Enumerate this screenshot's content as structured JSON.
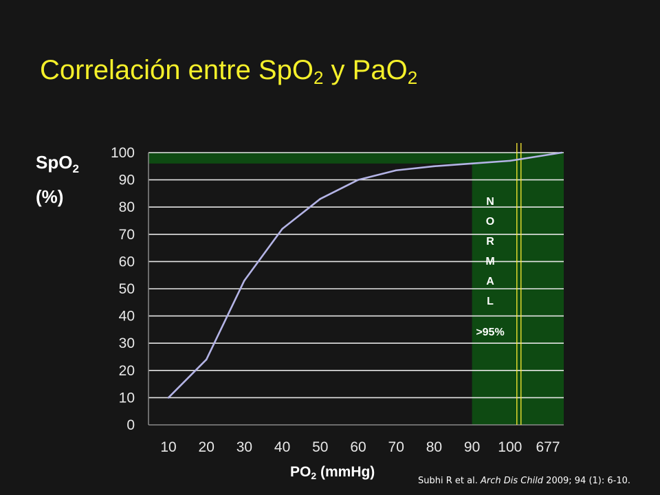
{
  "title": {
    "main": "Correlación entre SpO",
    "sub1": "2",
    "mid": " y PaO",
    "sub2": "2"
  },
  "ylabel": {
    "main": "SpO",
    "sub": "2",
    "unit": "(%)"
  },
  "xlabel": {
    "main": "PO",
    "sub": "2",
    "unit": " (mmHg)"
  },
  "citation": {
    "authors": "Subhi R et al. ",
    "journal": "Arch Dis Child",
    "rest": " 2009; 94 (1): 6-10."
  },
  "chart_data": {
    "type": "line",
    "categories": [
      "10",
      "20",
      "30",
      "40",
      "50",
      "60",
      "70",
      "80",
      "90",
      "100",
      "677"
    ],
    "series": [
      {
        "x": [
          10,
          20,
          30,
          40,
          50,
          60,
          70,
          80,
          90,
          100,
          677
        ],
        "values": [
          10,
          24,
          53,
          72,
          83,
          90,
          93.5,
          95,
          96,
          97,
          100
        ]
      }
    ],
    "ylim": [
      0,
      100
    ],
    "yticks": [
      0,
      10,
      20,
      30,
      40,
      50,
      60,
      70,
      80,
      90,
      100
    ],
    "grid": true,
    "normal_band": {
      "spo2_min": 96,
      "x_from": "90",
      "x_to": "677"
    },
    "normal_marker_x": "100",
    "annotation": {
      "letters": [
        "N",
        "O",
        "R",
        "M",
        "A",
        "L"
      ],
      "threshold": ">95%"
    },
    "colors": {
      "line": "#b4b4e6",
      "band": "#0e4a12",
      "grid": "#e6e6e6",
      "marker": "#ffee33",
      "title": "#f5f02a"
    }
  }
}
